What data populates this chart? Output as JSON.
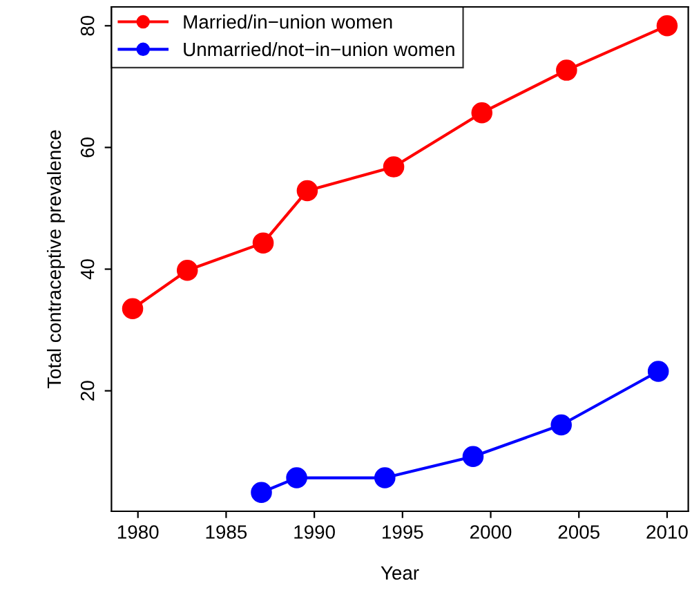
{
  "chart_data": {
    "type": "line",
    "xlabel": "Year",
    "ylabel": "Total contraceptive prevalence",
    "xlim": [
      1978.5,
      2011.2
    ],
    "ylim": [
      0.2,
      83.1
    ],
    "xticks": [
      1980,
      1985,
      1990,
      1995,
      2000,
      2005,
      2010
    ],
    "yticks": [
      20,
      40,
      60,
      80
    ],
    "marker": "circle",
    "line_style": "solid",
    "legend": "top left",
    "grid": false,
    "series": [
      {
        "name": "Married/in−union women",
        "color": "#ff0000",
        "x": [
          1979.7,
          1982.8,
          1987.1,
          1989.6,
          1994.5,
          1999.5,
          2004.3,
          2010
        ],
        "values": [
          33.5,
          39.8,
          44.3,
          52.9,
          56.8,
          65.7,
          72.7,
          80
        ]
      },
      {
        "name": "Unmarried/not−in−union women",
        "color": "#0000ff",
        "x": [
          1987,
          1989,
          1994,
          1999,
          2004,
          2009.5
        ],
        "values": [
          3.3,
          5.7,
          5.7,
          9.2,
          14.4,
          23.2
        ]
      }
    ]
  }
}
